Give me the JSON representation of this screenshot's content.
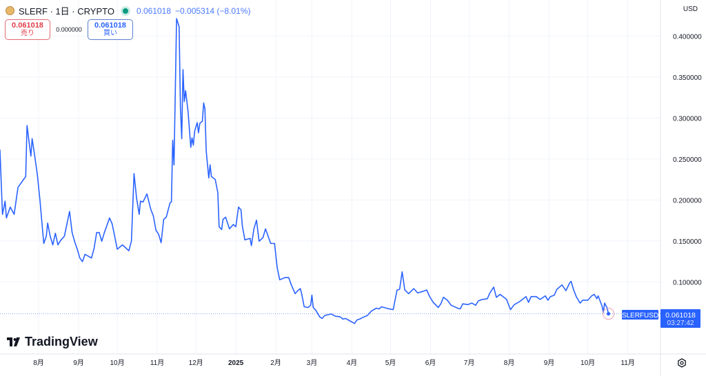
{
  "header": {
    "symbol": "SLERF · 1日 · CRYPTO",
    "last_price": "0.061018",
    "change": "−0.005314 (−8.01%)",
    "status_icon": "market-open-dot",
    "coin_icon": "slerf-coin-icon"
  },
  "trade": {
    "sell_price": "0.061018",
    "sell_label": "売り",
    "spread": "0.000000",
    "buy_price": "0.061018",
    "buy_label": "買い"
  },
  "currency": "USD",
  "logo_text": "TradingView",
  "price_label": {
    "symbol": "SLERFUSD",
    "price": "0.061018",
    "countdown": "03:27:42"
  },
  "colors": {
    "line": "#2962ff",
    "sell": "#e03c48",
    "buy": "#2962ff",
    "label_bg": "#2962ff"
  },
  "chart_data": {
    "type": "line",
    "series_name": "SLERFUSD",
    "ylim": [
      0.012,
      0.444
    ],
    "y_ticks": [
      "0.400000",
      "0.350000",
      "0.300000",
      "0.250000",
      "0.200000",
      "0.150000",
      "0.100000"
    ],
    "x_ticks": [
      {
        "label": "8月",
        "date": "2024-08-01"
      },
      {
        "label": "9月",
        "date": "2024-09-01"
      },
      {
        "label": "10月",
        "date": "2024-10-01"
      },
      {
        "label": "11月",
        "date": "2024-11-01"
      },
      {
        "label": "12月",
        "date": "2024-12-01"
      },
      {
        "label": "2025",
        "date": "2025-01-01",
        "bold": true
      },
      {
        "label": "2月",
        "date": "2025-02-01"
      },
      {
        "label": "3月",
        "date": "2025-03-01"
      },
      {
        "label": "4月",
        "date": "2025-04-01"
      },
      {
        "label": "5月",
        "date": "2025-05-01"
      },
      {
        "label": "6月",
        "date": "2025-06-01"
      },
      {
        "label": "7月",
        "date": "2025-07-01"
      },
      {
        "label": "8月",
        "date": "2025-08-01"
      },
      {
        "label": "9月",
        "date": "2025-09-01"
      },
      {
        "label": "10月",
        "date": "2025-10-01"
      },
      {
        "label": "11月",
        "date": "2025-11-01"
      }
    ],
    "grid": true,
    "last_value": 0.061018,
    "points": [
      [
        "2024-07-02",
        0.2615
      ],
      [
        "2024-07-04",
        0.1824
      ],
      [
        "2024-07-06",
        0.1984
      ],
      [
        "2024-07-07",
        0.178
      ],
      [
        "2024-07-10",
        0.1913
      ],
      [
        "2024-07-13",
        0.1824
      ],
      [
        "2024-07-16",
        0.2153
      ],
      [
        "2024-07-20",
        0.2242
      ],
      [
        "2024-07-22",
        0.2286
      ],
      [
        "2024-07-23",
        0.2908
      ],
      [
        "2024-07-26",
        0.2535
      ],
      [
        "2024-07-27",
        0.2748
      ],
      [
        "2024-07-29",
        0.2535
      ],
      [
        "2024-07-31",
        0.2313
      ],
      [
        "2024-08-02",
        0.2002
      ],
      [
        "2024-08-04",
        0.1647
      ],
      [
        "2024-08-05",
        0.1469
      ],
      [
        "2024-08-07",
        0.1558
      ],
      [
        "2024-08-08",
        0.1718
      ],
      [
        "2024-08-10",
        0.1558
      ],
      [
        "2024-08-12",
        0.1451
      ],
      [
        "2024-08-14",
        0.1593
      ],
      [
        "2024-08-16",
        0.1451
      ],
      [
        "2024-08-18",
        0.1504
      ],
      [
        "2024-08-21",
        0.1558
      ],
      [
        "2024-08-25",
        0.186
      ],
      [
        "2024-08-27",
        0.1602
      ],
      [
        "2024-08-29",
        0.1487
      ],
      [
        "2024-08-31",
        0.1398
      ],
      [
        "2024-09-02",
        0.1291
      ],
      [
        "2024-09-04",
        0.1247
      ],
      [
        "2024-09-06",
        0.1336
      ],
      [
        "2024-09-11",
        0.1291
      ],
      [
        "2024-09-13",
        0.1407
      ],
      [
        "2024-09-15",
        0.1602
      ],
      [
        "2024-09-17",
        0.1602
      ],
      [
        "2024-09-19",
        0.1496
      ],
      [
        "2024-09-21",
        0.1602
      ],
      [
        "2024-09-25",
        0.178
      ],
      [
        "2024-09-27",
        0.1709
      ],
      [
        "2024-09-29",
        0.1558
      ],
      [
        "2024-10-01",
        0.1398
      ],
      [
        "2024-10-05",
        0.1451
      ],
      [
        "2024-10-10",
        0.138
      ],
      [
        "2024-10-12",
        0.1496
      ],
      [
        "2024-10-14",
        0.2321
      ],
      [
        "2024-10-16",
        0.202
      ],
      [
        "2024-10-18",
        0.1824
      ],
      [
        "2024-10-19",
        0.1984
      ],
      [
        "2024-10-21",
        0.1975
      ],
      [
        "2024-10-24",
        0.2073
      ],
      [
        "2024-10-27",
        0.1886
      ],
      [
        "2024-10-29",
        0.1806
      ],
      [
        "2024-10-31",
        0.1629
      ],
      [
        "2024-11-02",
        0.1584
      ],
      [
        "2024-11-04",
        0.1478
      ],
      [
        "2024-11-06",
        0.1762
      ],
      [
        "2024-11-08",
        0.1789
      ],
      [
        "2024-11-11",
        0.1966
      ],
      [
        "2024-11-12",
        0.1975
      ],
      [
        "2024-11-13",
        0.273
      ],
      [
        "2024-11-14",
        0.2428
      ],
      [
        "2024-11-16",
        0.4213
      ],
      [
        "2024-11-18",
        0.4115
      ],
      [
        "2024-11-19",
        0.313
      ],
      [
        "2024-11-20",
        0.2748
      ],
      [
        "2024-11-21",
        0.3591
      ],
      [
        "2024-11-22",
        0.3201
      ],
      [
        "2024-11-23",
        0.3334
      ],
      [
        "2024-11-25",
        0.3067
      ],
      [
        "2024-11-27",
        0.2641
      ],
      [
        "2024-11-28",
        0.2757
      ],
      [
        "2024-11-29",
        0.2668
      ],
      [
        "2024-11-30",
        0.2837
      ],
      [
        "2024-12-02",
        0.2943
      ],
      [
        "2024-12-03",
        0.2819
      ],
      [
        "2024-12-04",
        0.2934
      ],
      [
        "2024-12-06",
        0.2961
      ],
      [
        "2024-12-07",
        0.3183
      ],
      [
        "2024-12-08",
        0.3112
      ],
      [
        "2024-12-09",
        0.2597
      ],
      [
        "2024-12-11",
        0.2268
      ],
      [
        "2024-12-12",
        0.2428
      ],
      [
        "2024-12-13",
        0.2286
      ],
      [
        "2024-12-16",
        0.225
      ],
      [
        "2024-12-18",
        0.2091
      ],
      [
        "2024-12-19",
        0.1673
      ],
      [
        "2024-12-21",
        0.1638
      ],
      [
        "2024-12-22",
        0.1762
      ],
      [
        "2024-12-24",
        0.1789
      ],
      [
        "2024-12-27",
        0.1647
      ],
      [
        "2024-12-30",
        0.17
      ],
      [
        "2025-01-01",
        0.1673
      ],
      [
        "2025-01-03",
        0.1913
      ],
      [
        "2025-01-05",
        0.1877
      ],
      [
        "2025-01-06",
        0.1682
      ],
      [
        "2025-01-08",
        0.1513
      ],
      [
        "2025-01-12",
        0.1531
      ],
      [
        "2025-01-13",
        0.1442
      ],
      [
        "2025-01-15",
        0.1647
      ],
      [
        "2025-01-17",
        0.1753
      ],
      [
        "2025-01-19",
        0.1496
      ],
      [
        "2025-01-22",
        0.154
      ],
      [
        "2025-01-24",
        0.1647
      ],
      [
        "2025-01-28",
        0.1469
      ],
      [
        "2025-01-31",
        0.1469
      ],
      [
        "2025-02-02",
        0.1176
      ],
      [
        "2025-02-04",
        0.1025
      ],
      [
        "2025-02-08",
        0.1052
      ],
      [
        "2025-02-11",
        0.1052
      ],
      [
        "2025-02-13",
        0.0963
      ],
      [
        "2025-02-16",
        0.0856
      ],
      [
        "2025-02-18",
        0.0892
      ],
      [
        "2025-02-20",
        0.0918
      ],
      [
        "2025-02-21",
        0.0856
      ],
      [
        "2025-02-23",
        0.0696
      ],
      [
        "2025-02-26",
        0.0687
      ],
      [
        "2025-02-28",
        0.0714
      ],
      [
        "2025-03-01",
        0.0838
      ],
      [
        "2025-03-02",
        0.0687
      ],
      [
        "2025-03-04",
        0.0652
      ],
      [
        "2025-03-07",
        0.0572
      ],
      [
        "2025-03-09",
        0.0554
      ],
      [
        "2025-03-11",
        0.059
      ],
      [
        "2025-03-16",
        0.0608
      ],
      [
        "2025-03-19",
        0.0581
      ],
      [
        "2025-03-23",
        0.0572
      ],
      [
        "2025-03-25",
        0.0545
      ],
      [
        "2025-03-27",
        0.0554
      ],
      [
        "2025-03-31",
        0.0519
      ],
      [
        "2025-04-03",
        0.0492
      ],
      [
        "2025-04-05",
        0.0536
      ],
      [
        "2025-04-07",
        0.0545
      ],
      [
        "2025-04-09",
        0.0563
      ],
      [
        "2025-04-13",
        0.059
      ],
      [
        "2025-04-16",
        0.0643
      ],
      [
        "2025-04-20",
        0.0679
      ],
      [
        "2025-04-22",
        0.067
      ],
      [
        "2025-04-24",
        0.0696
      ],
      [
        "2025-04-30",
        0.067
      ],
      [
        "2025-05-03",
        0.0661
      ],
      [
        "2025-05-06",
        0.0901
      ],
      [
        "2025-05-08",
        0.0909
      ],
      [
        "2025-05-10",
        0.1123
      ],
      [
        "2025-05-12",
        0.0901
      ],
      [
        "2025-05-15",
        0.0856
      ],
      [
        "2025-05-19",
        0.0918
      ],
      [
        "2025-05-22",
        0.0865
      ],
      [
        "2025-05-26",
        0.0883
      ],
      [
        "2025-05-29",
        0.0901
      ],
      [
        "2025-05-31",
        0.0829
      ],
      [
        "2025-06-03",
        0.075
      ],
      [
        "2025-06-07",
        0.0687
      ],
      [
        "2025-06-09",
        0.0732
      ],
      [
        "2025-06-11",
        0.0812
      ],
      [
        "2025-06-14",
        0.0776
      ],
      [
        "2025-06-17",
        0.0714
      ],
      [
        "2025-06-22",
        0.0679
      ],
      [
        "2025-06-24",
        0.067
      ],
      [
        "2025-06-26",
        0.0732
      ],
      [
        "2025-06-30",
        0.0723
      ],
      [
        "2025-07-03",
        0.0741
      ],
      [
        "2025-07-06",
        0.0714
      ],
      [
        "2025-07-08",
        0.0767
      ],
      [
        "2025-07-11",
        0.0785
      ],
      [
        "2025-07-15",
        0.0794
      ],
      [
        "2025-07-17",
        0.0865
      ],
      [
        "2025-07-20",
        0.0936
      ],
      [
        "2025-07-22",
        0.0812
      ],
      [
        "2025-07-25",
        0.0847
      ],
      [
        "2025-07-30",
        0.0785
      ],
      [
        "2025-08-02",
        0.0661
      ],
      [
        "2025-08-05",
        0.0723
      ],
      [
        "2025-08-09",
        0.0758
      ],
      [
        "2025-08-14",
        0.082
      ],
      [
        "2025-08-16",
        0.075
      ],
      [
        "2025-08-18",
        0.082
      ],
      [
        "2025-08-22",
        0.082
      ],
      [
        "2025-08-25",
        0.0785
      ],
      [
        "2025-08-29",
        0.0829
      ],
      [
        "2025-08-31",
        0.0776
      ],
      [
        "2025-09-02",
        0.082
      ],
      [
        "2025-09-05",
        0.0838
      ],
      [
        "2025-09-07",
        0.0909
      ],
      [
        "2025-09-11",
        0.0963
      ],
      [
        "2025-09-14",
        0.0892
      ],
      [
        "2025-09-17",
        0.0989
      ],
      [
        "2025-09-18",
        0.1007
      ],
      [
        "2025-09-20",
        0.0901
      ],
      [
        "2025-09-22",
        0.082
      ],
      [
        "2025-09-25",
        0.0741
      ],
      [
        "2025-09-27",
        0.0776
      ],
      [
        "2025-10-01",
        0.0776
      ],
      [
        "2025-10-04",
        0.0829
      ],
      [
        "2025-10-06",
        0.0847
      ],
      [
        "2025-10-08",
        0.0794
      ],
      [
        "2025-10-09",
        0.0829
      ],
      [
        "2025-10-12",
        0.0705
      ],
      [
        "2025-10-13",
        0.0625
      ],
      [
        "2025-10-14",
        0.0741
      ],
      [
        "2025-10-16",
        0.0679
      ],
      [
        "2025-10-17",
        0.061018
      ]
    ]
  }
}
